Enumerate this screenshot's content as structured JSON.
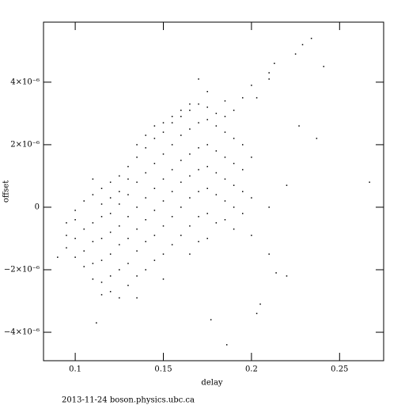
{
  "chart_data": {
    "type": "scatter",
    "x_label": "delay",
    "y_label": "offset",
    "footer": "2013-11-24 boson.physics.ubc.ca",
    "color": "#000000",
    "xlim": [
      0.082,
      0.275
    ],
    "ylim": [
      -4.91e-06,
      5.92e-06
    ],
    "xticks": [
      0.1,
      0.15,
      0.2,
      0.25
    ],
    "yticks": [
      {
        "value": -4e-06,
        "label": "−4×10⁻⁶"
      },
      {
        "value": -2e-06,
        "label": "−2×10⁻⁶"
      },
      0,
      {
        "value": 2e-06,
        "label": "2×10⁻⁶"
      },
      {
        "value": 4e-06,
        "label": "4×10⁻⁶"
      }
    ],
    "x": [
      0.095,
      0.095,
      0.095,
      0.1,
      0.1,
      0.1,
      0.1,
      0.105,
      0.105,
      0.105,
      0.105,
      0.11,
      0.11,
      0.11,
      0.11,
      0.11,
      0.11,
      0.115,
      0.115,
      0.115,
      0.115,
      0.115,
      0.115,
      0.115,
      0.12,
      0.12,
      0.12,
      0.12,
      0.12,
      0.12,
      0.12,
      0.125,
      0.125,
      0.125,
      0.125,
      0.125,
      0.125,
      0.125,
      0.13,
      0.13,
      0.13,
      0.13,
      0.13,
      0.13,
      0.13,
      0.135,
      0.135,
      0.135,
      0.135,
      0.135,
      0.135,
      0.135,
      0.135,
      0.14,
      0.14,
      0.14,
      0.14,
      0.14,
      0.14,
      0.14,
      0.145,
      0.145,
      0.145,
      0.145,
      0.145,
      0.145,
      0.145,
      0.15,
      0.15,
      0.15,
      0.15,
      0.15,
      0.15,
      0.15,
      0.15,
      0.155,
      0.155,
      0.155,
      0.155,
      0.155,
      0.155,
      0.155,
      0.16,
      0.16,
      0.16,
      0.16,
      0.16,
      0.16,
      0.16,
      0.165,
      0.165,
      0.165,
      0.165,
      0.165,
      0.165,
      0.165,
      0.165,
      0.17,
      0.17,
      0.17,
      0.17,
      0.17,
      0.17,
      0.17,
      0.175,
      0.175,
      0.175,
      0.175,
      0.175,
      0.175,
      0.175,
      0.175,
      0.18,
      0.18,
      0.18,
      0.18,
      0.18,
      0.18,
      0.185,
      0.185,
      0.185,
      0.185,
      0.185,
      0.185,
      0.185,
      0.19,
      0.19,
      0.19,
      0.19,
      0.19,
      0.19,
      0.195,
      0.195,
      0.195,
      0.195,
      0.195,
      0.2,
      0.2,
      0.2,
      0.2,
      0.21,
      0.21,
      0.21,
      0.234,
      0.229,
      0.225,
      0.241,
      0.213,
      0.267,
      0.237,
      0.227,
      0.186,
      0.112,
      0.205,
      0.177,
      0.09,
      0.214,
      0.22,
      0.203,
      0.22,
      0.21,
      0.203,
      0.17
    ],
    "values": [
      -9e-07,
      -1.3e-06,
      -5e-07,
      -4e-07,
      -1e-06,
      -1.6e-06,
      -1e-07,
      -7e-07,
      -1.4e-06,
      2e-07,
      -1.9e-06,
      -5e-07,
      -1.1e-06,
      -1.8e-06,
      4e-07,
      -2.3e-06,
      9e-07,
      -3e-07,
      -1e-06,
      -1.7e-06,
      6e-07,
      -2.4e-06,
      1e-07,
      -2.8e-06,
      -8e-07,
      -2e-07,
      -1.5e-06,
      8e-07,
      -2.2e-06,
      3e-07,
      -2.7e-06,
      -6e-07,
      1e-07,
      -1.2e-06,
      1e-06,
      -2e-06,
      -2.9e-06,
      5e-07,
      -3e-07,
      4e-07,
      -1e-06,
      1.3e-06,
      -1.8e-06,
      -2.5e-06,
      9e-07,
      0.0,
      8e-07,
      -7e-07,
      1.6e-06,
      -1.4e-06,
      -2.2e-06,
      -2.9e-06,
      2e-06,
      3e-07,
      1.1e-06,
      -4e-07,
      1.9e-06,
      -1.1e-06,
      -2e-06,
      2.3e-06,
      6e-07,
      1.4e-06,
      -1e-07,
      2.2e-06,
      -9e-07,
      -1.7e-06,
      2.6e-06,
      9e-07,
      1.7e-06,
      2e-07,
      2.4e-06,
      -6e-07,
      -1.5e-06,
      2.7e-06,
      -2.3e-06,
      1.2e-06,
      2e-06,
      5e-07,
      2.7e-06,
      -3e-07,
      -1.2e-06,
      2.9e-06,
      1.5e-06,
      2.3e-06,
      8e-07,
      2.9e-06,
      0.0,
      -9e-07,
      3.1e-06,
      1.7e-06,
      2.5e-06,
      1e-06,
      3.1e-06,
      3e-07,
      -6e-07,
      3.3e-06,
      -1.5e-06,
      1.9e-06,
      2.7e-06,
      1.2e-06,
      3.3e-06,
      5e-07,
      -3e-07,
      -1.1e-06,
      2e-06,
      2.8e-06,
      1.3e-06,
      3.2e-06,
      6e-07,
      -2e-07,
      -1e-06,
      3.7e-06,
      1.8e-06,
      2.6e-06,
      1.1e-06,
      3e-06,
      4e-07,
      -5e-07,
      1.6e-06,
      2.4e-06,
      9e-07,
      2.9e-06,
      2e-07,
      -4e-07,
      3.4e-06,
      1.4e-06,
      2.2e-06,
      7e-07,
      0.0,
      3.1e-06,
      -7e-07,
      1.2e-06,
      5e-07,
      2e-06,
      3.5e-06,
      -2e-07,
      3e-07,
      1.6e-06,
      3.9e-06,
      -9e-07,
      0.0,
      4.3e-06,
      -1.5e-06,
      5.4e-06,
      5.2e-06,
      4.9e-06,
      4.5e-06,
      4.6e-06,
      8e-07,
      2.2e-06,
      2.6e-06,
      -4.4e-06,
      -3.7e-06,
      -3.1e-06,
      -3.6e-06,
      -1.6e-06,
      -2.1e-06,
      -2.2e-06,
      -3.4e-06,
      7e-07,
      4.1e-06,
      3.5e-06,
      4.1e-06
    ]
  }
}
